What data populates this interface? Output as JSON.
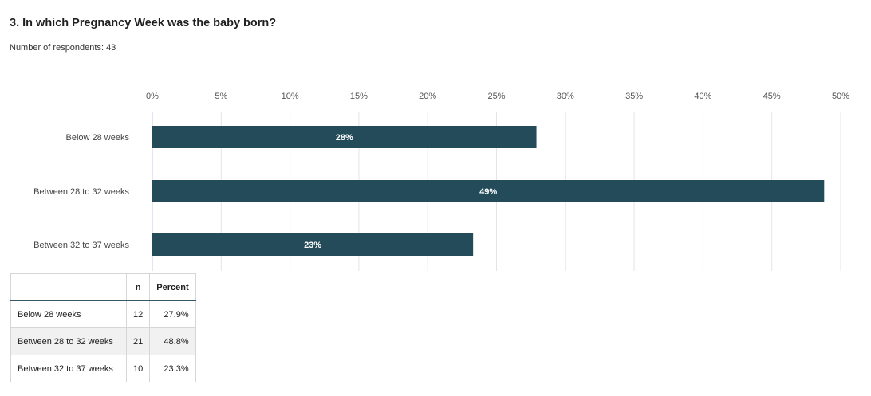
{
  "question": {
    "title": "3. In which Pregnancy Week was the baby born?",
    "respondents_text": "Number of respondents: 43"
  },
  "chart_data": {
    "type": "bar",
    "orientation": "horizontal",
    "title": "3. In which Pregnancy Week was the baby born?",
    "categories": [
      "Below 28 weeks",
      "Between 28 to 32 weeks",
      "Between 32 to 37 weeks"
    ],
    "values": [
      27.9,
      48.8,
      23.3
    ],
    "data_labels": [
      "28%",
      "49%",
      "23%"
    ],
    "xlim": [
      0,
      50
    ],
    "x_ticks": [
      "0%",
      "5%",
      "10%",
      "15%",
      "20%",
      "25%",
      "30%",
      "35%",
      "40%",
      "45%",
      "50%"
    ],
    "xlabel": "",
    "ylabel": "",
    "grid": true,
    "legend": "none",
    "bar_color": "#234b59"
  },
  "table": {
    "headers": [
      "",
      "n",
      "Percent"
    ],
    "rows": [
      {
        "category": "Below 28 weeks",
        "n": "12",
        "percent": "27.9%"
      },
      {
        "category": "Between 28 to 32 weeks",
        "n": "21",
        "percent": "48.8%"
      },
      {
        "category": "Between 32 to 37 weeks",
        "n": "10",
        "percent": "23.3%"
      }
    ]
  }
}
